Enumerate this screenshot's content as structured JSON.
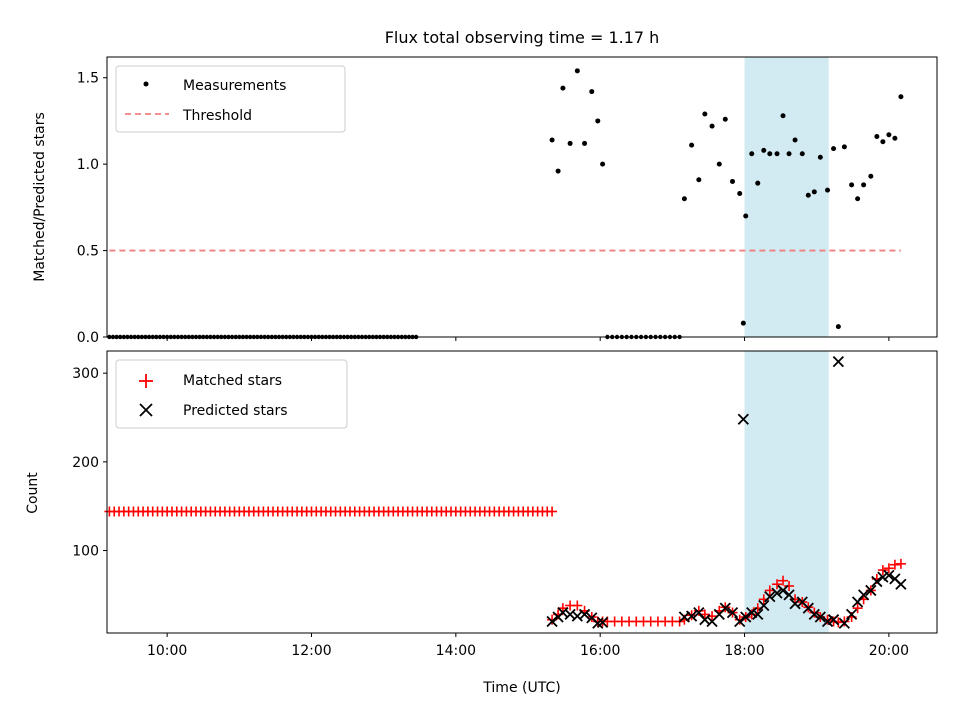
{
  "chart_data": [
    {
      "panel": "top",
      "type": "scatter",
      "title": "Flux total observing time = 1.17 h",
      "xlabel": "",
      "ylabel": "Matched/Predicted stars",
      "xlim": [
        "09:10",
        "20:40"
      ],
      "ylim": [
        0,
        1.62
      ],
      "yticks": [
        0.0,
        0.5,
        1.0,
        1.5
      ],
      "ytick_labels": [
        "0.0",
        "0.5",
        "1.0",
        "1.5"
      ],
      "xtick_labels_visible": false,
      "grid": false,
      "legend": "upper-left",
      "highlight_span": {
        "x_start": "18:00",
        "x_end": "19:10",
        "color": "#add8e6"
      },
      "series": [
        {
          "name": "Measurements",
          "marker": "dot",
          "color": "#000000",
          "x_start": "09:12",
          "x_step_min": 3,
          "count": 86,
          "values": "all 0.0",
          "points": [
            [
              "15:20",
              1.14
            ],
            [
              "15:25",
              0.96
            ],
            [
              "15:29",
              1.44
            ],
            [
              "15:35",
              1.12
            ],
            [
              "15:41",
              1.54
            ],
            [
              "15:47",
              1.12
            ],
            [
              "15:53",
              1.42
            ],
            [
              "15:58",
              1.25
            ],
            [
              "16:02",
              1.0
            ],
            [
              "17:10",
              0.8
            ],
            [
              "17:16",
              1.11
            ],
            [
              "17:22",
              0.91
            ],
            [
              "17:27",
              1.29
            ],
            [
              "17:33",
              1.22
            ],
            [
              "17:39",
              1.0
            ],
            [
              "17:44",
              1.26
            ],
            [
              "17:50",
              0.9
            ],
            [
              "17:56",
              0.83
            ],
            [
              "17:59",
              0.08
            ],
            [
              "18:01",
              0.7
            ],
            [
              "18:06",
              1.06
            ],
            [
              "18:11",
              0.89
            ],
            [
              "18:16",
              1.08
            ],
            [
              "18:21",
              1.06
            ],
            [
              "18:27",
              1.06
            ],
            [
              "18:32",
              1.28
            ],
            [
              "18:37",
              1.06
            ],
            [
              "18:42",
              1.14
            ],
            [
              "18:48",
              1.06
            ],
            [
              "18:53",
              0.82
            ],
            [
              "18:58",
              0.84
            ],
            [
              "19:03",
              1.04
            ],
            [
              "19:09",
              0.85
            ],
            [
              "19:14",
              1.09
            ],
            [
              "19:18",
              0.06
            ],
            [
              "19:23",
              1.1
            ],
            [
              "19:29",
              0.88
            ],
            [
              "19:34",
              0.8
            ],
            [
              "19:39",
              0.88
            ],
            [
              "19:45",
              0.93
            ],
            [
              "19:50",
              1.16
            ],
            [
              "19:55",
              1.13
            ],
            [
              "20:00",
              1.17
            ],
            [
              "20:05",
              1.15
            ],
            [
              "20:10",
              1.39
            ]
          ]
        },
        {
          "name": "Threshold",
          "marker": "dashed-line",
          "color": "#f08080",
          "x": [
            "09:12",
            "20:10"
          ],
          "values": [
            0.5,
            0.5
          ]
        }
      ]
    },
    {
      "panel": "bottom",
      "type": "scatter",
      "title": "",
      "xlabel": "Time (UTC)",
      "ylabel": "Count",
      "xlim": [
        "09:10",
        "20:40"
      ],
      "ylim": [
        7,
        325
      ],
      "yticks": [
        100,
        200,
        300
      ],
      "ytick_labels": [
        "100",
        "200",
        "300"
      ],
      "xticks": [
        "10:00",
        "12:00",
        "14:00",
        "16:00",
        "18:00",
        "20:00"
      ],
      "xtick_labels": [
        "10:00",
        "12:00",
        "14:00",
        "16:00",
        "18:00",
        "20:00"
      ],
      "grid": false,
      "legend": "upper-left",
      "highlight_span": {
        "x_start": "18:00",
        "x_end": "19:10",
        "color": "#add8e6"
      },
      "series": [
        {
          "name": "Matched stars",
          "marker": "plus",
          "color": "#ff0000",
          "flat_run": {
            "x_start": "09:12",
            "x_end": "15:20",
            "x_step_min": 4,
            "value": 144
          },
          "points": [
            [
              "15:20",
              22
            ],
            [
              "15:25",
              28
            ],
            [
              "15:29",
              35
            ],
            [
              "15:35",
              38
            ],
            [
              "15:41",
              38
            ],
            [
              "15:47",
              32
            ],
            [
              "15:53",
              25
            ],
            [
              "15:58",
              20
            ],
            [
              "16:02",
              20
            ],
            [
              "16:06",
              20
            ],
            [
              "16:12",
              20
            ],
            [
              "16:18",
              20
            ],
            [
              "16:24",
              20
            ],
            [
              "16:30",
              20
            ],
            [
              "16:36",
              20
            ],
            [
              "16:42",
              20
            ],
            [
              "16:48",
              20
            ],
            [
              "16:54",
              20
            ],
            [
              "17:00",
              20
            ],
            [
              "17:06",
              20
            ],
            [
              "17:10",
              22
            ],
            [
              "17:16",
              27
            ],
            [
              "17:22",
              32
            ],
            [
              "17:27",
              28
            ],
            [
              "17:33",
              26
            ],
            [
              "17:39",
              32
            ],
            [
              "17:44",
              36
            ],
            [
              "17:50",
              30
            ],
            [
              "17:56",
              22
            ],
            [
              "18:01",
              25
            ],
            [
              "18:06",
              28
            ],
            [
              "18:11",
              35
            ],
            [
              "18:16",
              45
            ],
            [
              "18:21",
              55
            ],
            [
              "18:27",
              62
            ],
            [
              "18:32",
              66
            ],
            [
              "18:37",
              60
            ],
            [
              "18:42",
              45
            ],
            [
              "18:48",
              42
            ],
            [
              "18:53",
              36
            ],
            [
              "18:58",
              30
            ],
            [
              "19:03",
              25
            ],
            [
              "19:09",
              22
            ],
            [
              "19:14",
              20
            ],
            [
              "19:18",
              19
            ],
            [
              "19:23",
              20
            ],
            [
              "19:29",
              25
            ],
            [
              "19:34",
              35
            ],
            [
              "19:39",
              45
            ],
            [
              "19:45",
              55
            ],
            [
              "19:50",
              68
            ],
            [
              "19:55",
              78
            ],
            [
              "20:00",
              80
            ],
            [
              "20:05",
              84
            ],
            [
              "20:10",
              85
            ]
          ]
        },
        {
          "name": "Predicted stars",
          "marker": "x",
          "color": "#000000",
          "points": [
            [
              "15:20",
              20
            ],
            [
              "15:25",
              25
            ],
            [
              "15:29",
              30
            ],
            [
              "15:35",
              28
            ],
            [
              "15:41",
              26
            ],
            [
              "15:47",
              28
            ],
            [
              "15:53",
              24
            ],
            [
              "15:58",
              18
            ],
            [
              "16:02",
              19
            ],
            [
              "17:10",
              25
            ],
            [
              "17:16",
              26
            ],
            [
              "17:22",
              30
            ],
            [
              "17:27",
              22
            ],
            [
              "17:33",
              20
            ],
            [
              "17:39",
              28
            ],
            [
              "17:44",
              35
            ],
            [
              "17:50",
              30
            ],
            [
              "17:56",
              20
            ],
            [
              "17:59",
              248
            ],
            [
              "18:01",
              25
            ],
            [
              "18:06",
              30
            ],
            [
              "18:11",
              28
            ],
            [
              "18:16",
              38
            ],
            [
              "18:21",
              48
            ],
            [
              "18:27",
              52
            ],
            [
              "18:32",
              55
            ],
            [
              "18:37",
              50
            ],
            [
              "18:42",
              40
            ],
            [
              "18:48",
              42
            ],
            [
              "18:53",
              35
            ],
            [
              "18:58",
              28
            ],
            [
              "19:03",
              25
            ],
            [
              "19:09",
              20
            ],
            [
              "19:14",
              22
            ],
            [
              "19:18",
              313
            ],
            [
              "19:23",
              18
            ],
            [
              "19:29",
              28
            ],
            [
              "19:34",
              42
            ],
            [
              "19:39",
              50
            ],
            [
              "19:45",
              55
            ],
            [
              "19:50",
              65
            ],
            [
              "19:55",
              70
            ],
            [
              "20:00",
              72
            ],
            [
              "20:05",
              68
            ],
            [
              "20:10",
              62
            ]
          ]
        }
      ]
    }
  ]
}
